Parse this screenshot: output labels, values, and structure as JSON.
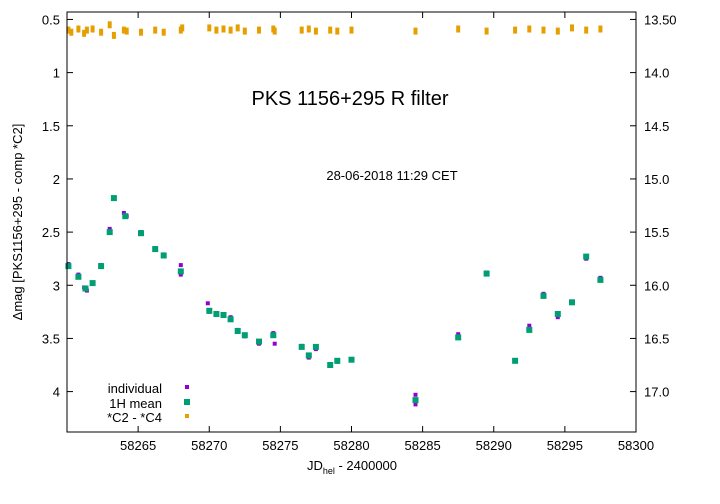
{
  "chart_data": {
    "type": "scatter",
    "title": "PKS 1156+295   R filter",
    "timestamp": "28-06-2018  11:29 CET",
    "xlabel_main": "JD",
    "xlabel_sub": "hel",
    "xlabel_rest": " - 2400000",
    "ylabel": "Δmag [PKS1156+295 - comp *C2]",
    "xlim": [
      58260,
      58300
    ],
    "ylim": [
      0.43,
      4.38
    ],
    "y2lim": [
      13.43,
      17.38
    ],
    "y_inverted": true,
    "x_ticks": [
      "58265",
      "58270",
      "58275",
      "58280",
      "58285",
      "58290",
      "58295",
      "58300"
    ],
    "y_ticks": [
      "0.5",
      "1",
      "1.5",
      "2",
      "2.5",
      "3",
      "3.5",
      "4"
    ],
    "y2_ticks": [
      "13.50",
      "14.0",
      "14.5",
      "15.0",
      "15.5",
      "16.0",
      "16.5",
      "17.0"
    ],
    "legend_position": "bottom-left",
    "colors": {
      "individual": "#9400d3",
      "mean": "#009e73",
      "comparison": "#e69f00"
    },
    "series": [
      {
        "name": "individual",
        "points": [
          [
            58260.1,
            2.8
          ],
          [
            58260.8,
            2.9
          ],
          [
            58261.2,
            3.02
          ],
          [
            58261.4,
            3.05
          ],
          [
            58261.8,
            2.98
          ],
          [
            58262.4,
            2.81
          ],
          [
            58263.0,
            2.47
          ],
          [
            58263.3,
            2.18
          ],
          [
            58264.0,
            2.32
          ],
          [
            58264.2,
            2.35
          ],
          [
            58265.2,
            2.5
          ],
          [
            58266.2,
            2.65
          ],
          [
            58266.8,
            2.71
          ],
          [
            58268.0,
            2.81
          ],
          [
            58268.0,
            2.9
          ],
          [
            58269.9,
            3.17
          ],
          [
            58270.0,
            3.25
          ],
          [
            58270.5,
            3.27
          ],
          [
            58271.0,
            3.28
          ],
          [
            58271.5,
            3.3
          ],
          [
            58272.0,
            3.42
          ],
          [
            58272.5,
            3.48
          ],
          [
            58273.5,
            3.55
          ],
          [
            58274.5,
            3.45
          ],
          [
            58274.6,
            3.55
          ],
          [
            58276.5,
            3.57
          ],
          [
            58277.0,
            3.68
          ],
          [
            58277.5,
            3.6
          ],
          [
            58278.5,
            3.75
          ],
          [
            58279.0,
            3.72
          ],
          [
            58284.5,
            4.03
          ],
          [
            58284.5,
            4.12
          ],
          [
            58287.5,
            3.46
          ],
          [
            58289.5,
            2.88
          ],
          [
            58292.5,
            3.38
          ],
          [
            58293.5,
            3.08
          ],
          [
            58294.5,
            3.3
          ],
          [
            58296.5,
            2.75
          ],
          [
            58297.5,
            2.93
          ]
        ]
      },
      {
        "name": "1H mean",
        "points": [
          [
            58260.1,
            2.82
          ],
          [
            58260.8,
            2.92
          ],
          [
            58261.3,
            3.03
          ],
          [
            58261.8,
            2.98
          ],
          [
            58262.4,
            2.82
          ],
          [
            58263.0,
            2.5
          ],
          [
            58263.3,
            2.18
          ],
          [
            58264.1,
            2.35
          ],
          [
            58265.2,
            2.51
          ],
          [
            58266.2,
            2.66
          ],
          [
            58266.8,
            2.72
          ],
          [
            58268.0,
            2.87
          ],
          [
            58270.0,
            3.24
          ],
          [
            58270.5,
            3.27
          ],
          [
            58271.0,
            3.28
          ],
          [
            58271.5,
            3.32
          ],
          [
            58272.0,
            3.43
          ],
          [
            58272.5,
            3.47
          ],
          [
            58273.5,
            3.53
          ],
          [
            58274.5,
            3.47
          ],
          [
            58276.5,
            3.58
          ],
          [
            58277.0,
            3.66
          ],
          [
            58277.5,
            3.58
          ],
          [
            58278.5,
            3.75
          ],
          [
            58279.0,
            3.71
          ],
          [
            58280.0,
            3.7
          ],
          [
            58284.5,
            4.08
          ],
          [
            58287.5,
            3.49
          ],
          [
            58289.5,
            2.89
          ],
          [
            58291.5,
            3.71
          ],
          [
            58292.5,
            3.42
          ],
          [
            58293.5,
            3.1
          ],
          [
            58294.5,
            3.27
          ],
          [
            58295.5,
            3.16
          ],
          [
            58296.5,
            2.73
          ],
          [
            58297.5,
            2.95
          ]
        ]
      },
      {
        "name": "*C2 - *C4",
        "points": [
          [
            58260.1,
            0.6
          ],
          [
            58260.3,
            0.62
          ],
          [
            58260.8,
            0.59
          ],
          [
            58261.2,
            0.63
          ],
          [
            58261.4,
            0.6
          ],
          [
            58261.8,
            0.59
          ],
          [
            58262.4,
            0.62
          ],
          [
            58263.0,
            0.55
          ],
          [
            58263.3,
            0.65
          ],
          [
            58264.0,
            0.6
          ],
          [
            58264.2,
            0.61
          ],
          [
            58265.2,
            0.62
          ],
          [
            58266.2,
            0.6
          ],
          [
            58266.8,
            0.62
          ],
          [
            58268.0,
            0.6
          ],
          [
            58268.1,
            0.58
          ],
          [
            58270.0,
            0.58
          ],
          [
            58270.5,
            0.6
          ],
          [
            58271.0,
            0.59
          ],
          [
            58271.5,
            0.6
          ],
          [
            58272.0,
            0.58
          ],
          [
            58272.5,
            0.61
          ],
          [
            58273.5,
            0.6
          ],
          [
            58274.5,
            0.59
          ],
          [
            58274.6,
            0.61
          ],
          [
            58276.5,
            0.6
          ],
          [
            58277.0,
            0.59
          ],
          [
            58277.5,
            0.61
          ],
          [
            58278.5,
            0.6
          ],
          [
            58279.0,
            0.61
          ],
          [
            58280.0,
            0.6
          ],
          [
            58284.5,
            0.61
          ],
          [
            58287.5,
            0.59
          ],
          [
            58289.5,
            0.61
          ],
          [
            58291.5,
            0.6
          ],
          [
            58292.5,
            0.59
          ],
          [
            58293.5,
            0.6
          ],
          [
            58294.5,
            0.61
          ],
          [
            58295.5,
            0.58
          ],
          [
            58296.5,
            0.6
          ],
          [
            58297.5,
            0.59
          ]
        ]
      }
    ]
  }
}
